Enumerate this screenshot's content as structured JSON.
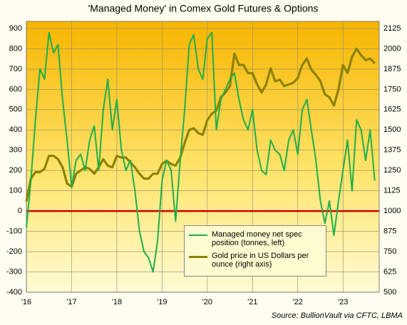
{
  "chart_data": {
    "type": "line",
    "title": "'Managed Money' in Comex Gold Futures & Options",
    "source": "Source: BullionVault via CFTC, LBMA",
    "x": [
      2016.0,
      2016.1,
      2016.2,
      2016.3,
      2016.4,
      2016.5,
      2016.6,
      2016.7,
      2016.8,
      2016.9,
      2017.0,
      2017.1,
      2017.2,
      2017.3,
      2017.4,
      2017.5,
      2017.6,
      2017.7,
      2017.8,
      2017.9,
      2018.0,
      2018.1,
      2018.2,
      2018.3,
      2018.4,
      2018.5,
      2018.6,
      2018.7,
      2018.8,
      2018.9,
      2019.0,
      2019.1,
      2019.2,
      2019.3,
      2019.4,
      2019.5,
      2019.6,
      2019.7,
      2019.8,
      2019.9,
      2020.0,
      2020.1,
      2020.2,
      2020.3,
      2020.4,
      2020.5,
      2020.6,
      2020.7,
      2020.8,
      2020.9,
      2021.0,
      2021.1,
      2021.2,
      2021.3,
      2021.4,
      2021.5,
      2021.6,
      2021.7,
      2021.8,
      2021.9,
      2022.0,
      2022.1,
      2022.2,
      2022.3,
      2022.4,
      2022.5,
      2022.6,
      2022.7,
      2022.8,
      2022.9,
      2023.0,
      2023.1,
      2023.2,
      2023.3,
      2023.4,
      2023.5,
      2023.6,
      2023.7
    ],
    "series": [
      {
        "name": "Managed money net spec position (tonnes, left)",
        "color": "#1fae4b",
        "width": 2,
        "values": [
          -80,
          150,
          450,
          700,
          650,
          880,
          780,
          820,
          550,
          350,
          120,
          250,
          280,
          200,
          350,
          420,
          200,
          500,
          650,
          400,
          550,
          300,
          200,
          250,
          100,
          -100,
          -200,
          -230,
          -300,
          -150,
          150,
          250,
          200,
          -50,
          250,
          500,
          820,
          870,
          700,
          650,
          850,
          880,
          400,
          550,
          600,
          650,
          680,
          550,
          450,
          400,
          500,
          300,
          200,
          180,
          350,
          300,
          280,
          200,
          350,
          400,
          280,
          500,
          550,
          400,
          250,
          50,
          -60,
          50,
          -120,
          50,
          200,
          350,
          100,
          450,
          400,
          250,
          400,
          150
        ]
      },
      {
        "name": "Gold price in US Dollars per ounce (right axis)",
        "color": "#8c8200",
        "width": 3.2,
        "axis": "y2",
        "values": [
          1060,
          1200,
          1240,
          1240,
          1260,
          1340,
          1340,
          1320,
          1270,
          1170,
          1150,
          1230,
          1250,
          1270,
          1260,
          1230,
          1270,
          1320,
          1280,
          1270,
          1340,
          1330,
          1330,
          1300,
          1270,
          1230,
          1200,
          1200,
          1230,
          1230,
          1290,
          1310,
          1290,
          1280,
          1330,
          1420,
          1500,
          1510,
          1480,
          1470,
          1560,
          1600,
          1620,
          1700,
          1730,
          1770,
          1970,
          1900,
          1900,
          1850,
          1850,
          1780,
          1730,
          1780,
          1880,
          1800,
          1810,
          1770,
          1780,
          1790,
          1820,
          1900,
          1940,
          1870,
          1840,
          1800,
          1720,
          1700,
          1650,
          1750,
          1900,
          1850,
          1950,
          2000,
          1960,
          1930,
          1940,
          1910
        ]
      }
    ],
    "xlim": [
      2016,
      2023.8
    ],
    "xticks": [
      {
        "value": 2016,
        "label": "'16"
      },
      {
        "value": 2017,
        "label": "'17"
      },
      {
        "value": 2018,
        "label": "'18"
      },
      {
        "value": 2019,
        "label": "'19"
      },
      {
        "value": 2020,
        "label": "'20"
      },
      {
        "value": 2021,
        "label": "'21"
      },
      {
        "value": 2022,
        "label": "'22"
      },
      {
        "value": 2023,
        "label": "'23"
      }
    ],
    "ylim": [
      -400,
      935
    ],
    "yticks": [
      -400,
      -300,
      -200,
      -100,
      0,
      100,
      200,
      300,
      400,
      500,
      600,
      700,
      800,
      900
    ],
    "y2lim": [
      500,
      2168.75
    ],
    "y2ticks": [
      500,
      625,
      750,
      875,
      1000,
      1125,
      1250,
      1375,
      1500,
      1625,
      1750,
      1875,
      2000,
      2125
    ],
    "grid": true,
    "zero_line_color": "#cc0000"
  }
}
